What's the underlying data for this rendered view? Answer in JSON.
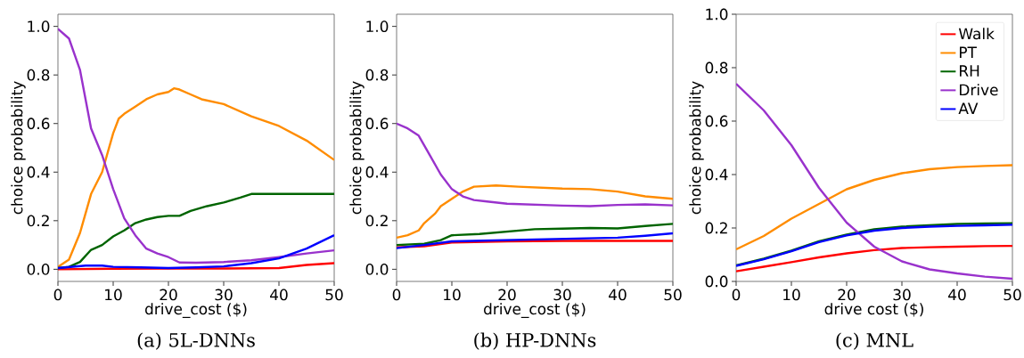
{
  "chart_data": [
    {
      "type": "line",
      "title": "(a) 5L-DNNs",
      "xlabel": "drive_cost ($)",
      "ylabel": "choice probability",
      "xlim": [
        0,
        50
      ],
      "ylim": [
        -0.05,
        1.05
      ],
      "xticks": [
        0,
        10,
        20,
        30,
        40,
        50
      ],
      "yticks": [
        {
          "value": 0,
          "label": "0.0"
        },
        {
          "value": 0.2,
          "label": "0.2"
        },
        {
          "value": 0.4,
          "label": "0.4"
        },
        {
          "value": 0.6,
          "label": "0.6"
        },
        {
          "value": 0.8,
          "label": "0.8"
        },
        {
          "value": 1,
          "label": "1.0"
        }
      ],
      "series": [
        {
          "color": "#ff0000",
          "x": [
            0,
            10,
            20,
            30,
            40,
            45,
            50
          ],
          "values": [
            0,
            0.002,
            0.003,
            0.003,
            0.005,
            0.018,
            0.025
          ]
        },
        {
          "color": "#ff8c00",
          "x": [
            0,
            2,
            4,
            6,
            8,
            10,
            11,
            12,
            14,
            16,
            18,
            20,
            21,
            22,
            24,
            26,
            30,
            35,
            40,
            45,
            50
          ],
          "values": [
            0.01,
            0.04,
            0.15,
            0.31,
            0.4,
            0.56,
            0.62,
            0.64,
            0.67,
            0.7,
            0.72,
            0.73,
            0.745,
            0.74,
            0.72,
            0.7,
            0.68,
            0.63,
            0.59,
            0.53,
            0.45
          ]
        },
        {
          "color": "#006400",
          "x": [
            0,
            2,
            4,
            6,
            8,
            10,
            12,
            14,
            16,
            18,
            20,
            22,
            24,
            27,
            30,
            33,
            35,
            40,
            45,
            50
          ],
          "values": [
            0.005,
            0.01,
            0.03,
            0.08,
            0.1,
            0.135,
            0.16,
            0.19,
            0.205,
            0.215,
            0.22,
            0.22,
            0.24,
            0.26,
            0.275,
            0.295,
            0.31,
            0.31,
            0.31,
            0.31
          ]
        },
        {
          "color": "#9932cc",
          "x": [
            0,
            2,
            4,
            6,
            8,
            10,
            12,
            14,
            16,
            18,
            20,
            22,
            25,
            30,
            35,
            40,
            45,
            50
          ],
          "values": [
            0.99,
            0.95,
            0.82,
            0.58,
            0.47,
            0.33,
            0.21,
            0.14,
            0.085,
            0.065,
            0.05,
            0.028,
            0.027,
            0.03,
            0.037,
            0.05,
            0.065,
            0.078
          ]
        },
        {
          "color": "#0000ff",
          "x": [
            0,
            5,
            8,
            10,
            15,
            20,
            25,
            30,
            35,
            40,
            45,
            50
          ],
          "values": [
            0.005,
            0.015,
            0.015,
            0.01,
            0.008,
            0.005,
            0.008,
            0.012,
            0.025,
            0.045,
            0.085,
            0.14
          ]
        }
      ]
    },
    {
      "type": "line",
      "title": "(b) HP-DNNs",
      "xlabel": "drive_cost ($)",
      "ylabel": "choice probability",
      "xlim": [
        0,
        50
      ],
      "ylim": [
        -0.05,
        1.05
      ],
      "xticks": [
        0,
        10,
        20,
        30,
        40,
        50
      ],
      "yticks": [
        {
          "value": 0,
          "label": "0.0"
        },
        {
          "value": 0.2,
          "label": "0.2"
        },
        {
          "value": 0.4,
          "label": "0.4"
        },
        {
          "value": 0.6,
          "label": "0.6"
        },
        {
          "value": 0.8,
          "label": "0.8"
        },
        {
          "value": 1,
          "label": "1.0"
        }
      ],
      "series": [
        {
          "color": "#ff0000",
          "x": [
            0,
            5,
            10,
            20,
            30,
            40,
            50
          ],
          "values": [
            0.09,
            0.095,
            0.11,
            0.115,
            0.117,
            0.117,
            0.117
          ]
        },
        {
          "color": "#ff8c00",
          "x": [
            0,
            2,
            4,
            5,
            7,
            8,
            10,
            12,
            14,
            18,
            22,
            30,
            35,
            40,
            45,
            50
          ],
          "values": [
            0.13,
            0.14,
            0.16,
            0.19,
            0.23,
            0.26,
            0.29,
            0.32,
            0.34,
            0.345,
            0.34,
            0.332,
            0.33,
            0.32,
            0.3,
            0.29
          ]
        },
        {
          "color": "#006400",
          "x": [
            0,
            5,
            8,
            10,
            15,
            20,
            25,
            30,
            35,
            40,
            45,
            50
          ],
          "values": [
            0.1,
            0.105,
            0.12,
            0.14,
            0.145,
            0.155,
            0.165,
            0.167,
            0.17,
            0.168,
            0.178,
            0.187
          ]
        },
        {
          "color": "#9932cc",
          "x": [
            0,
            2,
            4,
            6,
            8,
            10,
            12,
            14,
            16,
            20,
            30,
            35,
            40,
            45,
            50
          ],
          "values": [
            0.6,
            0.58,
            0.55,
            0.47,
            0.39,
            0.33,
            0.3,
            0.285,
            0.28,
            0.27,
            0.262,
            0.26,
            0.265,
            0.267,
            0.263
          ]
        },
        {
          "color": "#0000ff",
          "x": [
            0,
            5,
            10,
            20,
            30,
            40,
            45,
            50
          ],
          "values": [
            0.087,
            0.1,
            0.115,
            0.12,
            0.125,
            0.13,
            0.138,
            0.148
          ]
        }
      ]
    },
    {
      "type": "line",
      "title": "(c) MNL",
      "xlabel": "drive cost ($)",
      "ylabel": "choice probability",
      "xlim": [
        0,
        50
      ],
      "ylim": [
        0,
        1
      ],
      "xticks": [
        0,
        10,
        20,
        30,
        40,
        50
      ],
      "yticks": [
        {
          "value": 0,
          "label": "0.0"
        },
        {
          "value": 0.2,
          "label": "0.2"
        },
        {
          "value": 0.4,
          "label": "0.4"
        },
        {
          "value": 0.6,
          "label": "0.6"
        },
        {
          "value": 0.8,
          "label": "0.8"
        },
        {
          "value": 1,
          "label": "1.0"
        }
      ],
      "legend": "top right",
      "series": [
        {
          "name": "Walk",
          "color": "#ff0000",
          "x": [
            0,
            5,
            10,
            15,
            20,
            25,
            30,
            35,
            40,
            45,
            50
          ],
          "values": [
            0.038,
            0.055,
            0.072,
            0.09,
            0.105,
            0.117,
            0.125,
            0.128,
            0.13,
            0.132,
            0.133
          ]
        },
        {
          "name": "PT",
          "color": "#ff8c00",
          "x": [
            0,
            5,
            10,
            15,
            20,
            25,
            30,
            35,
            40,
            45,
            50
          ],
          "values": [
            0.12,
            0.17,
            0.235,
            0.29,
            0.345,
            0.38,
            0.405,
            0.42,
            0.428,
            0.432,
            0.435
          ]
        },
        {
          "name": "RH",
          "color": "#006400",
          "x": [
            0,
            5,
            10,
            15,
            20,
            25,
            30,
            35,
            40,
            45,
            50
          ],
          "values": [
            0.06,
            0.085,
            0.115,
            0.15,
            0.175,
            0.195,
            0.205,
            0.21,
            0.215,
            0.217,
            0.218
          ]
        },
        {
          "name": "Drive",
          "color": "#9932cc",
          "x": [
            0,
            5,
            10,
            15,
            20,
            25,
            30,
            35,
            40,
            45,
            50
          ],
          "values": [
            0.74,
            0.64,
            0.51,
            0.35,
            0.22,
            0.13,
            0.075,
            0.045,
            0.03,
            0.018,
            0.01
          ]
        },
        {
          "name": "AV",
          "color": "#0000ff",
          "x": [
            0,
            5,
            10,
            15,
            20,
            25,
            30,
            35,
            40,
            45,
            50
          ],
          "values": [
            0.058,
            0.083,
            0.113,
            0.147,
            0.172,
            0.19,
            0.2,
            0.205,
            0.208,
            0.21,
            0.212
          ]
        }
      ]
    }
  ]
}
